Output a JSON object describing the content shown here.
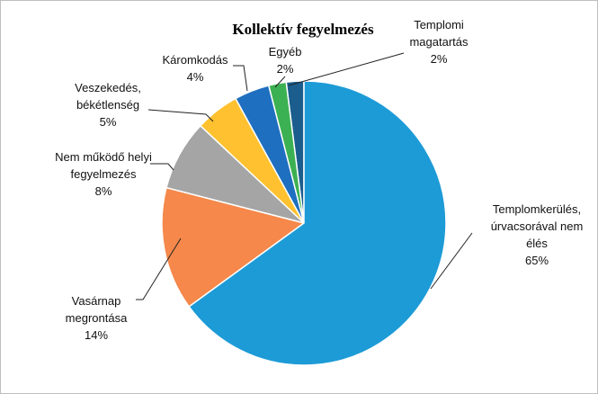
{
  "chart_data": {
    "type": "pie",
    "title": "Kollektív fegyelmezés",
    "categories": [
      "Templomkerülés, úrvacsorával nem élés",
      "Vasárnap megrontása",
      "Nem működő helyi fegyelmezés",
      "Veszekedés, békétlenség",
      "Káromkodás",
      "Egyéb",
      "Templomi magatartás"
    ],
    "values": [
      65,
      14,
      8,
      5,
      4,
      2,
      2
    ],
    "value_labels": [
      "65%",
      "14%",
      "8%",
      "5%",
      "4%",
      "2%",
      "2%"
    ],
    "colors": [
      "#1d9bd7",
      "#f5884a",
      "#a5a5a5",
      "#ffc12f",
      "#1f6fc0",
      "#3cb153",
      "#1b5e8e"
    ]
  }
}
